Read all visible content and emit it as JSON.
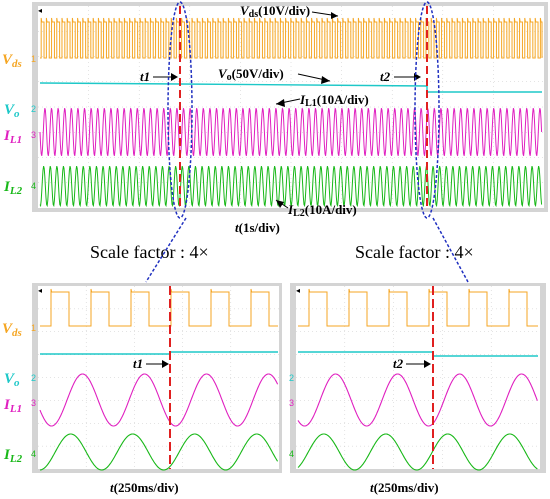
{
  "colors": {
    "vds": "#f5a623",
    "vo": "#1ec8c8",
    "il1": "#e020c0",
    "il2": "#18b818",
    "marker": "#e02020",
    "ellipse": "#2030c0",
    "grid": "#c8c8c8",
    "screen": "#ffffff",
    "frame": "#cfcfcf"
  },
  "chart_data": [
    {
      "type": "line",
      "panel": "overview",
      "channels": [
        {
          "id": "vds",
          "label": "Vds",
          "marker": "1",
          "scale_label": "Vds(10V/div)",
          "waveform": "pulse-train"
        },
        {
          "id": "vo",
          "label": "Vo",
          "marker": "2",
          "scale_label": "Vo(50V/div)",
          "waveform": "dc-step-down-at-t2"
        },
        {
          "id": "il1",
          "label": "IL1",
          "marker": "3",
          "scale_label": "IL1(10A/div)",
          "waveform": "sine"
        },
        {
          "id": "il2",
          "label": "IL2",
          "marker": "4",
          "scale_label": "IL2(10A/div)",
          "waveform": "sine"
        }
      ],
      "time_scale": "t(1s/div)",
      "events": [
        {
          "name": "t1"
        },
        {
          "name": "t2"
        }
      ],
      "scale_factor_labels": [
        "Scale factor : 4×",
        "Scale factor : 4×"
      ]
    },
    {
      "type": "line",
      "panel": "zoom-t1",
      "channels": [
        "Vds",
        "Vo",
        "IL1",
        "IL2"
      ],
      "markers": [
        "1",
        "2",
        "3",
        "4"
      ],
      "time_scale": "t(250ms/div)",
      "event": "t1"
    },
    {
      "type": "line",
      "panel": "zoom-t2",
      "channels": [
        "Vds",
        "Vo",
        "IL1",
        "IL2"
      ],
      "markers": [
        "2",
        "3",
        "4"
      ],
      "time_scale": "t(250ms/div)",
      "event": "t2"
    }
  ]
}
